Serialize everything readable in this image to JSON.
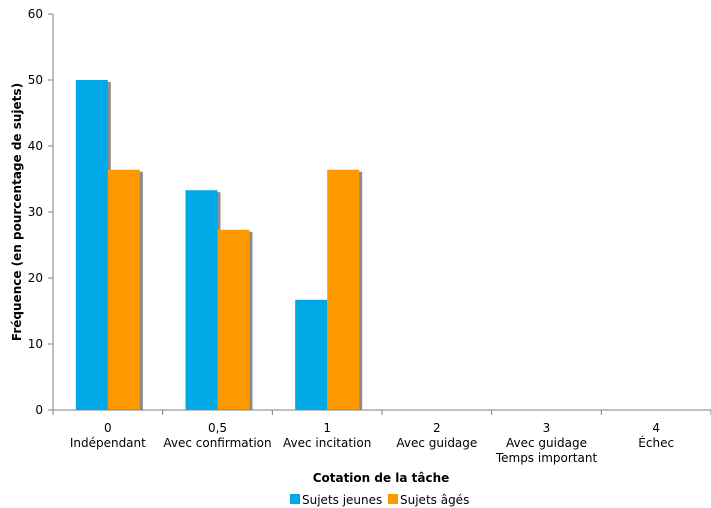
{
  "chart_data": {
    "type": "bar",
    "title": "",
    "xlabel": "Cotation de la tâche",
    "ylabel": "Fréquence (en pourcentage de sujets)",
    "ylim": [
      0,
      60
    ],
    "yticks": [
      0,
      10,
      20,
      30,
      40,
      50,
      60
    ],
    "grid": false,
    "legend_position": "bottom",
    "categories": [
      {
        "code": "0",
        "label": "Indépendant",
        "label2": ""
      },
      {
        "code": "0,5",
        "label": "Avec confirmation",
        "label2": ""
      },
      {
        "code": "1",
        "label": "Avec incitation",
        "label2": ""
      },
      {
        "code": "2",
        "label": "Avec guidage",
        "label2": ""
      },
      {
        "code": "3",
        "label": "Avec guidage",
        "label2": "Temps important"
      },
      {
        "code": "4",
        "label": "Échec",
        "label2": ""
      }
    ],
    "series": [
      {
        "name": "Sujets jeunes",
        "color": "#00A9E6",
        "values": [
          50.0,
          33.3,
          16.7,
          0,
          0,
          0
        ]
      },
      {
        "name": "Sujets âgés",
        "color": "#FF9900",
        "values": [
          36.4,
          27.3,
          36.4,
          0,
          0,
          0
        ]
      }
    ],
    "shadow_color": "#8C8C8C"
  }
}
